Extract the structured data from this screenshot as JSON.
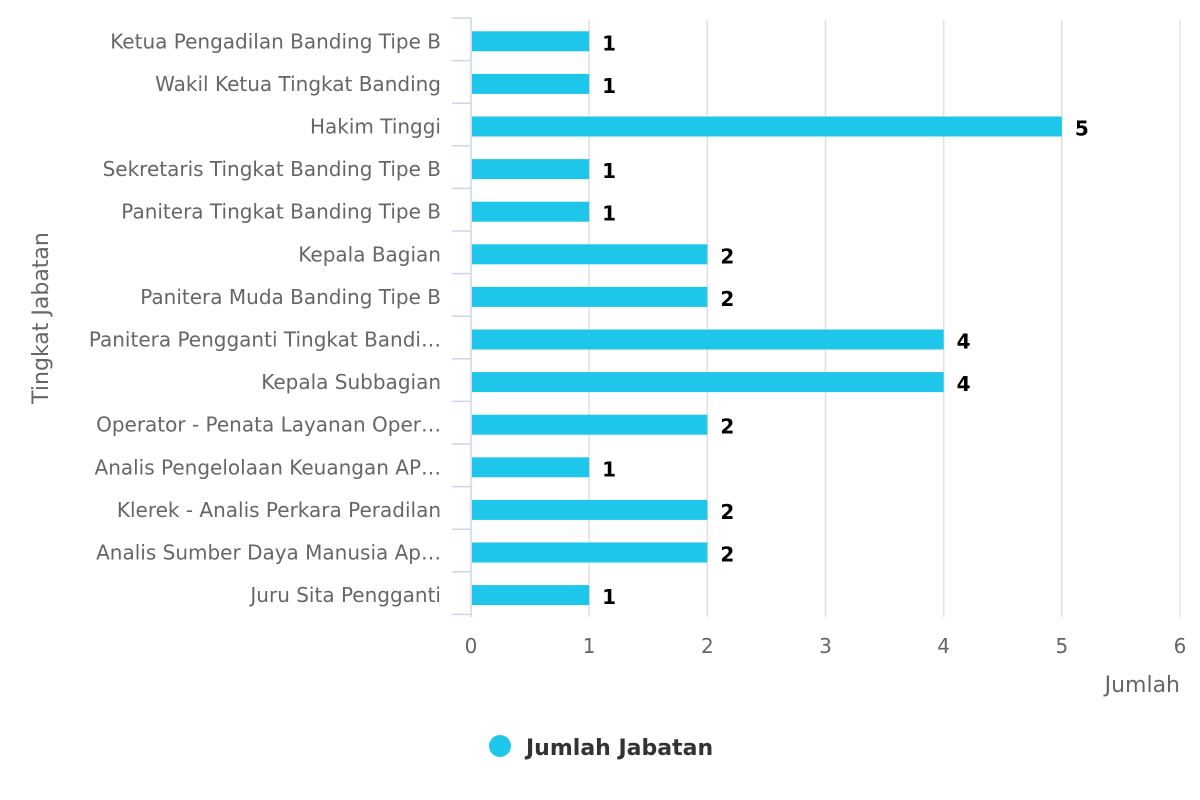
{
  "chart_data": {
    "type": "bar",
    "orientation": "horizontal",
    "categories": [
      "Ketua Pengadilan Banding Tipe B",
      "Wakil Ketua Tingkat Banding",
      "Hakim Tinggi",
      "Sekretaris Tingkat Banding Tipe B",
      "Panitera Tingkat Banding Tipe B",
      "Kepala Bagian",
      "Panitera Muda Banding Tipe B",
      "Panitera Pengganti Tingkat Bandi…",
      "Kepala Subbagian",
      "Operator - Penata Layanan Oper…",
      "Analis Pengelolaan Keuangan AP…",
      "Klerek - Analis Perkara Peradilan",
      "Analis Sumber Daya Manusia Ap…",
      "Juru Sita Pengganti"
    ],
    "series": [
      {
        "name": "Jumlah Jabatan",
        "color": "#1ec6ea",
        "values": [
          1,
          1,
          5,
          1,
          1,
          2,
          2,
          4,
          4,
          2,
          1,
          2,
          2,
          1
        ]
      }
    ],
    "xlabel": "Jumlah",
    "ylabel": "Tingkat Jabatan",
    "xlim": [
      0,
      6
    ],
    "xticks": [
      "0",
      "1",
      "2",
      "3",
      "4",
      "5",
      "6"
    ],
    "grid": true,
    "legend_position": "bottom-center",
    "data_labels": [
      "1",
      "1",
      "5",
      "1",
      "1",
      "2",
      "2",
      "4",
      "4",
      "2",
      "1",
      "2",
      "2",
      "1"
    ]
  }
}
